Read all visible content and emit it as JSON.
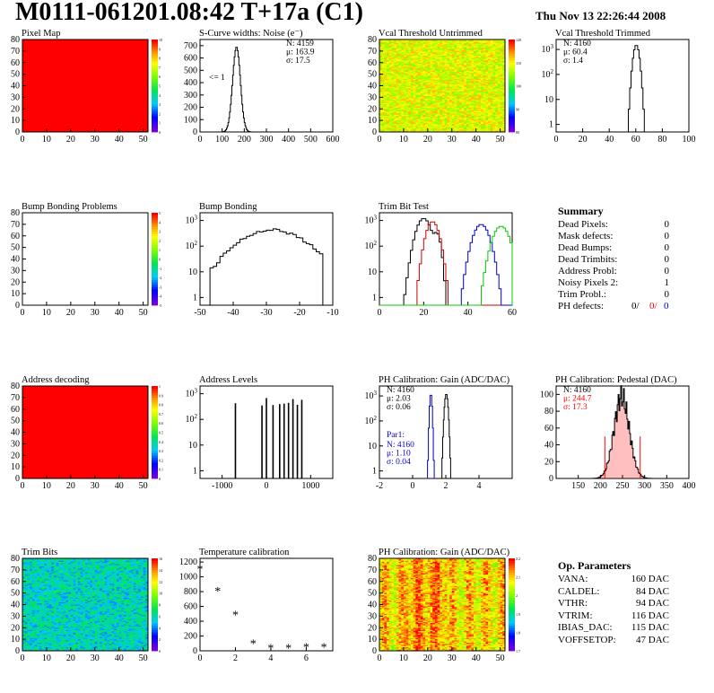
{
  "header": {
    "title": "M0111-061201.08:42 T+17a (C1)",
    "date": "Thu Nov 13 22:26:44 2008"
  },
  "colors": {
    "red": "#ff0000",
    "blue": "#0000cc",
    "green": "#00cc00",
    "black": "#000000"
  },
  "summary": {
    "title": "Summary",
    "rows": [
      {
        "label": "Dead Pixels:",
        "value": "0"
      },
      {
        "label": "Mask defects:",
        "value": "0"
      },
      {
        "label": "Dead Bumps:",
        "value": "0"
      },
      {
        "label": "Dead Trimbits:",
        "value": "0"
      },
      {
        "label": "Address Probl:",
        "value": "0"
      },
      {
        "label": "Noisy Pixels 2:",
        "value": "1"
      },
      {
        "label": "Trim Probl.:",
        "value": "0"
      }
    ],
    "ph_label": "PH defects:",
    "ph_values": [
      "0/",
      "0/",
      "0"
    ]
  },
  "op_params": {
    "title": "Op. Parameters",
    "rows": [
      {
        "label": "VANA:",
        "value": "160 DAC"
      },
      {
        "label": "CALDEL:",
        "value": "84 DAC"
      },
      {
        "label": "VTHR:",
        "value": "94 DAC"
      },
      {
        "label": "VTRIM:",
        "value": "116 DAC"
      },
      {
        "label": "IBIAS_DAC:",
        "value": "115 DAC"
      },
      {
        "label": "VOFFSETOP:",
        "value": "47 DAC"
      }
    ]
  },
  "chart_data": [
    {
      "id": "pixel-map",
      "type": "heatmap",
      "title": "Pixel Map",
      "xlim": [
        0,
        52
      ],
      "ylim": [
        0,
        80
      ],
      "xticks": [
        0,
        10,
        20,
        30,
        40,
        50
      ],
      "yticks": [
        0,
        10,
        20,
        30,
        40,
        50,
        60,
        70,
        80
      ],
      "zticks": [
        0,
        1,
        2,
        3,
        4,
        5,
        6,
        7,
        8,
        9,
        10
      ],
      "fill": "uniform",
      "value": 10
    },
    {
      "id": "scurve",
      "type": "bar",
      "title": "S-Curve widths: Noise (e⁻)",
      "xlim": [
        0,
        600
      ],
      "ylim": [
        0,
        750
      ],
      "xticks": [
        0,
        100,
        200,
        300,
        400,
        500,
        600
      ],
      "yticks": [
        0,
        100,
        200,
        300,
        400,
        500,
        600,
        700
      ],
      "stats": [
        "N: 4159",
        "μ: 163.9",
        "σ: 17.5"
      ],
      "annotation": "<= 1",
      "peak": {
        "mean": 165,
        "sigma": 17.5,
        "max": 690
      }
    },
    {
      "id": "vcal-untrimmed",
      "type": "heatmap",
      "title": "Vcal Threshold Untrimmed",
      "xlim": [
        0,
        52
      ],
      "ylim": [
        0,
        80
      ],
      "xticks": [
        0,
        10,
        20,
        30,
        40,
        50
      ],
      "yticks": [
        0,
        10,
        20,
        30,
        40,
        50,
        60,
        70,
        80
      ],
      "zticks": [
        80,
        90,
        100,
        110,
        120
      ],
      "fill": "noise",
      "base": 0.72,
      "spread": 0.12
    },
    {
      "id": "vcal-trimmed",
      "type": "bar",
      "title": "Vcal Threshold Trimmed",
      "xlim": [
        0,
        100
      ],
      "log": true,
      "ylim": [
        0.5,
        2500
      ],
      "xticks": [
        0,
        20,
        40,
        60,
        80,
        100
      ],
      "yticks": [
        1,
        10,
        100,
        1000
      ],
      "stats": [
        "N: 4160",
        "μ: 60.4",
        "σ:  1.4"
      ],
      "peak": {
        "mean": 60.4,
        "sigma": 1.6,
        "max": 1500
      }
    },
    {
      "id": "bump-problems",
      "type": "heatmap",
      "title": "Bump Bonding Problems",
      "xlim": [
        0,
        52
      ],
      "ylim": [
        0,
        80
      ],
      "xticks": [
        0,
        10,
        20,
        30,
        40,
        50
      ],
      "yticks": [
        0,
        10,
        20,
        30,
        40,
        50,
        60,
        70,
        80
      ],
      "zticks": [
        -5,
        -4,
        -3,
        -2,
        -1,
        0,
        1,
        2,
        3,
        4,
        5
      ],
      "fill": "empty"
    },
    {
      "id": "bump-bonding",
      "type": "bar",
      "title": "Bump Bonding",
      "xlim": [
        -50,
        -10
      ],
      "log": true,
      "ylim": [
        0.5,
        2000
      ],
      "xticks": [
        -50,
        -40,
        -30,
        -20,
        -10
      ],
      "yticks": [
        1,
        10,
        100,
        1000
      ],
      "peak": {
        "mean": -28,
        "sigma": 7,
        "max": 420,
        "from": -47,
        "to": -13
      }
    },
    {
      "id": "trim-bit-test",
      "type": "line",
      "title": "Trim Bit Test",
      "xlim": [
        0,
        60
      ],
      "log": true,
      "ylim": [
        0.5,
        2000
      ],
      "xticks": [
        0,
        20,
        40,
        60
      ],
      "yticks": [
        1,
        10,
        100,
        1000
      ],
      "series": [
        {
          "color": "#000000",
          "mean": 20,
          "sigma": 2.3,
          "max": 1200,
          "mean2": 26,
          "max2": 300
        },
        {
          "color": "#cc0000",
          "mean": 24,
          "sigma": 2.0,
          "max": 900
        },
        {
          "color": "#0000cc",
          "mean": 46,
          "sigma": 2.5,
          "max": 700
        },
        {
          "color": "#00cc00",
          "mean": 55,
          "sigma": 2.6,
          "max": 600
        }
      ]
    },
    {
      "id": "address-decoding",
      "type": "heatmap",
      "title": "Address decoding",
      "xlim": [
        0,
        52
      ],
      "ylim": [
        0,
        80
      ],
      "xticks": [
        0,
        10,
        20,
        30,
        40,
        50
      ],
      "yticks": [
        0,
        10,
        20,
        30,
        40,
        50,
        60,
        70,
        80
      ],
      "zticks": [
        0,
        0.1,
        0.2,
        0.3,
        0.4,
        0.5,
        0.6,
        0.7,
        0.8,
        0.9,
        1
      ],
      "fill": "uniform",
      "value": 1
    },
    {
      "id": "address-levels",
      "type": "bar",
      "title": "Address Levels",
      "xlim": [
        -1500,
        1500
      ],
      "log": true,
      "ylim": [
        0.5,
        2000
      ],
      "xticks": [
        -1000,
        0,
        1000
      ],
      "yticks": [
        1,
        10,
        100,
        1000
      ],
      "spikes": [
        -700,
        -100,
        0,
        150,
        300,
        400,
        500,
        600,
        700,
        800
      ],
      "spike_max": 700
    },
    {
      "id": "ph-gain",
      "type": "bar",
      "title": "PH Calibration: Gain (ADC/DAC)",
      "xlim": [
        -2,
        6
      ],
      "log": true,
      "ylim": [
        0.5,
        2500
      ],
      "xticks": [
        -2,
        0,
        2,
        4
      ],
      "yticks": [
        1,
        10,
        100,
        1000
      ],
      "stats": [
        "N: 4160",
        "μ: 2.03",
        "σ: 0.06"
      ],
      "par": {
        "title": "Par1:",
        "lines": [
          "N: 4160",
          "μ: 1.10",
          "σ: 0.04"
        ]
      },
      "peak": {
        "mean": 2.03,
        "sigma": 0.07,
        "max": 1200
      },
      "peak2": {
        "mean": 1.1,
        "sigma": 0.05,
        "max": 1200
      }
    },
    {
      "id": "ph-pedestal",
      "type": "bar",
      "title": "PH Calibration: Pedestal (DAC)",
      "xlim": [
        100,
        400
      ],
      "ylim": [
        0,
        110
      ],
      "xticks": [
        150,
        200,
        250,
        300,
        350,
        400
      ],
      "yticks": [
        0,
        20,
        40,
        60,
        80,
        100
      ],
      "stats": [
        "N: 4160",
        "μ: 244.7",
        "σ: 17.3"
      ],
      "peak": {
        "mean": 248,
        "sigma": 17.3,
        "max": 97
      },
      "markers": [
        210,
        290
      ]
    },
    {
      "id": "trim-bits",
      "type": "heatmap",
      "title": "Trim Bits",
      "xlim": [
        0,
        52
      ],
      "ylim": [
        0,
        80
      ],
      "xticks": [
        0,
        10,
        20,
        30,
        40,
        50
      ],
      "yticks": [
        0,
        10,
        20,
        30,
        40,
        50,
        60,
        70,
        80
      ],
      "zticks": [
        0,
        2,
        4,
        6,
        8,
        10,
        12,
        14,
        16
      ],
      "fill": "noise",
      "base": 0.36,
      "spread": 0.12
    },
    {
      "id": "temperature",
      "type": "scatter",
      "title": "Temperature calibration",
      "xlim": [
        0,
        7.5
      ],
      "ylim": [
        0,
        1250
      ],
      "xticks": [
        0,
        2,
        4,
        6
      ],
      "yticks": [
        0,
        200,
        400,
        600,
        800,
        1000,
        1200
      ],
      "x": [
        0,
        1,
        2,
        3,
        4,
        5,
        6,
        7
      ],
      "y": [
        1100,
        800,
        480,
        90,
        30,
        30,
        40,
        40
      ]
    },
    {
      "id": "ph-gain-map",
      "type": "heatmap",
      "title": "PH Calibration: Gain (ADC/DAC)",
      "xlim": [
        0,
        52
      ],
      "ylim": [
        0,
        80
      ],
      "xticks": [
        0,
        10,
        20,
        30,
        40,
        50
      ],
      "yticks": [
        0,
        10,
        20,
        30,
        40,
        50,
        60,
        70,
        80
      ],
      "zticks": [
        1.7,
        1.8,
        1.9,
        2,
        2.1,
        2.2
      ],
      "fill": "noise",
      "base": 0.78,
      "spread": 0.14,
      "stripes": true
    }
  ]
}
